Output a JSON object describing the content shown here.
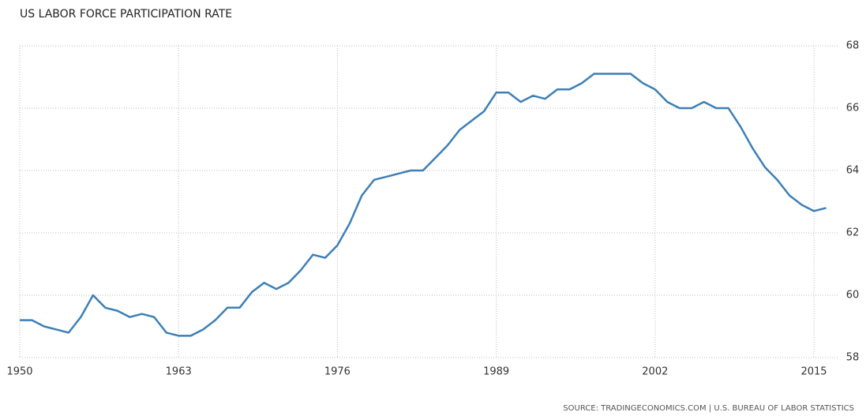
{
  "chart_data": {
    "type": "line",
    "title": "US LABOR FORCE PARTICIPATION RATE",
    "source": "SOURCE: TRADINGECONOMICS.COM | U.S. BUREAU OF LABOR STATISTICS",
    "x": [
      1950,
      1951,
      1952,
      1953,
      1954,
      1955,
      1956,
      1957,
      1958,
      1959,
      1960,
      1961,
      1962,
      1963,
      1964,
      1965,
      1966,
      1967,
      1968,
      1969,
      1970,
      1971,
      1972,
      1973,
      1974,
      1975,
      1976,
      1977,
      1978,
      1979,
      1980,
      1981,
      1982,
      1983,
      1984,
      1985,
      1986,
      1987,
      1988,
      1989,
      1990,
      1991,
      1992,
      1993,
      1994,
      1995,
      1996,
      1997,
      1998,
      1999,
      2000,
      2001,
      2002,
      2003,
      2004,
      2005,
      2006,
      2007,
      2008,
      2009,
      2010,
      2011,
      2012,
      2013,
      2014,
      2015,
      2016
    ],
    "series": [
      {
        "name": "Labor Force Participation Rate",
        "color": "#3d7fb6",
        "values": [
          59.2,
          59.2,
          59.0,
          58.9,
          58.8,
          59.3,
          60.0,
          59.6,
          59.5,
          59.3,
          59.4,
          59.3,
          58.8,
          58.7,
          58.7,
          58.9,
          59.2,
          59.6,
          59.6,
          60.1,
          60.4,
          60.2,
          60.4,
          60.8,
          61.3,
          61.2,
          61.6,
          62.3,
          63.2,
          63.7,
          63.8,
          63.9,
          64.0,
          64.0,
          64.4,
          64.8,
          65.3,
          65.6,
          65.9,
          66.5,
          66.5,
          66.2,
          66.4,
          66.3,
          66.6,
          66.6,
          66.8,
          67.1,
          67.1,
          67.1,
          67.1,
          66.8,
          66.6,
          66.2,
          66.0,
          66.0,
          66.2,
          66.0,
          66.0,
          65.4,
          64.7,
          64.1,
          63.7,
          63.2,
          62.9,
          62.7,
          62.8
        ]
      }
    ],
    "xlim": [
      1950,
      2017
    ],
    "xticks": [
      1950,
      1963,
      1976,
      1989,
      2002,
      2015
    ],
    "ylim": [
      58,
      68
    ],
    "yticks": [
      58,
      60,
      62,
      64,
      66,
      68
    ],
    "grid": true
  }
}
